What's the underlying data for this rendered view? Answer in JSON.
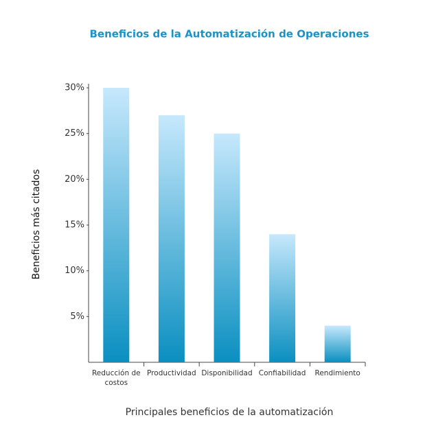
{
  "chart_data": {
    "type": "bar",
    "title": "Beneficios de la Automatización de Operaciones",
    "y_label": "Beneficios más citados",
    "x_label": "Principales beneficios de la automatización",
    "categories": [
      "Reducción de costos",
      "Productividad",
      "Disponibilidad",
      "Confiabilidad",
      "Rendimiento"
    ],
    "values": [
      30,
      27,
      25,
      14,
      4
    ],
    "color": "#0a8fc0",
    "ylim": [
      0,
      30
    ],
    "yticks": [
      {
        "value": 5,
        "label": "5%"
      },
      {
        "value": 10,
        "label": "10%"
      },
      {
        "value": 15,
        "label": "15%"
      },
      {
        "value": 20,
        "label": "20%"
      },
      {
        "value": 25,
        "label": "25%"
      },
      {
        "value": 30,
        "label": "30%"
      }
    ],
    "grid": false
  }
}
